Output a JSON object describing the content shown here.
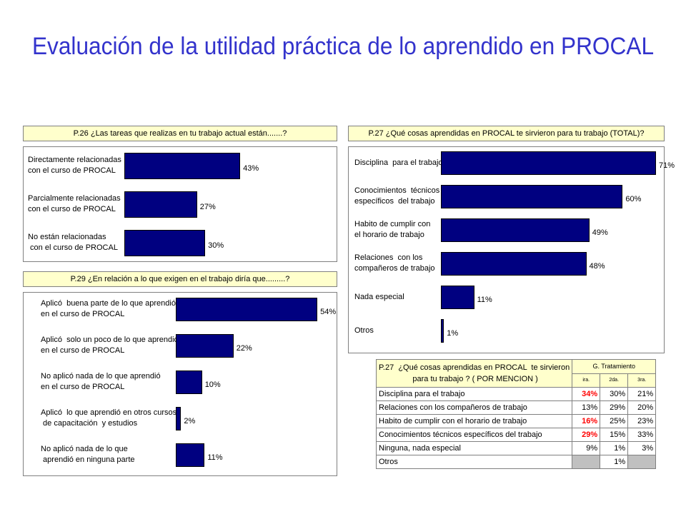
{
  "title": "Evaluación de la utilidad práctica de lo aprendido en PROCAL",
  "chart_data": [
    {
      "type": "bar",
      "orientation": "horizontal",
      "title": "P.26 ¿Las tareas que realizas en tu trabajo actual están.......?",
      "categories": [
        "Directamente relacionadas\ncon el curso de PROCAL",
        "Parcialmente relacionadas\ncon el curso de PROCAL",
        "No están relacionadas\n con el curso de PROCAL"
      ],
      "values": [
        43,
        27,
        30
      ],
      "value_labels": [
        "43%",
        "27%",
        "30%"
      ],
      "color": "#000080"
    },
    {
      "type": "bar",
      "orientation": "horizontal",
      "title": "P.29 ¿En relación a lo que exigen en el trabajo diría que.........?",
      "categories": [
        "Aplicó  buena parte de lo que aprendió\nen el curso de PROCAL",
        "Aplicó  solo un poco de lo que aprendió\nen el curso de PROCAL",
        "No aplicó nada de lo que aprendió\nen el curso de PROCAL",
        "Aplicó  lo que aprendió en otros cursos\n de capacitación  y estudios",
        "No aplicó nada de lo que\n aprendió en ninguna parte"
      ],
      "values": [
        54,
        22,
        10,
        2,
        11
      ],
      "value_labels": [
        "54%",
        "22%",
        "10%",
        "2%",
        "11%"
      ],
      "color": "#000080"
    },
    {
      "type": "bar",
      "orientation": "horizontal",
      "title": "P.27 ¿Qué cosas aprendidas en PROCAL te sirvieron para tu trabajo (TOTAL)?",
      "categories": [
        "Disciplina  para el trabajo",
        "Conocimientos  técnicos\nespecíficos  del trabajo",
        "Habito de cumplir con\nel horario de trabajo",
        "Relaciones  con los\ncompañeros de trabajo",
        "Nada especial",
        "Otros"
      ],
      "values": [
        71,
        60,
        49,
        48,
        11,
        1
      ],
      "value_labels": [
        "71%",
        "60%",
        "49%",
        "48%",
        "11%",
        "1%"
      ],
      "color": "#000080"
    },
    {
      "type": "table",
      "title": "P.27  ¿Qué cosas aprendidas en PROCAL  te sirvieron\n para tu trabajo ? ( POR MENCION )",
      "group_header": "G.  Tratamiento",
      "columns": [
        "ira.",
        "2da.",
        "3ra."
      ],
      "rows": [
        {
          "label": "Disciplina  para el trabajo",
          "values": [
            "34%",
            "30%",
            "21%"
          ],
          "highlight": [
            true,
            false,
            false
          ]
        },
        {
          "label": "Relaciones con los compañeros de trabajo",
          "values": [
            "13%",
            "29%",
            "20%"
          ],
          "highlight": [
            false,
            false,
            false
          ]
        },
        {
          "label": "Habito de cumplir  con el horario de trabajo",
          "values": [
            "16%",
            "25%",
            "23%"
          ],
          "highlight": [
            true,
            false,
            false
          ]
        },
        {
          "label": "Conocimientos  técnicos específicos del trabajo",
          "values": [
            "29%",
            "15%",
            "33%"
          ],
          "highlight": [
            true,
            false,
            false
          ]
        },
        {
          "label": "Ninguna, nada especial",
          "values": [
            "9%",
            "1%",
            "3%"
          ],
          "highlight": [
            false,
            false,
            false
          ]
        },
        {
          "label": "Otros",
          "values": [
            "",
            "1%",
            ""
          ],
          "highlight": [
            false,
            false,
            false
          ]
        }
      ],
      "highlight_color": "#ff0000",
      "empty_color": "#c0c0c0"
    }
  ]
}
